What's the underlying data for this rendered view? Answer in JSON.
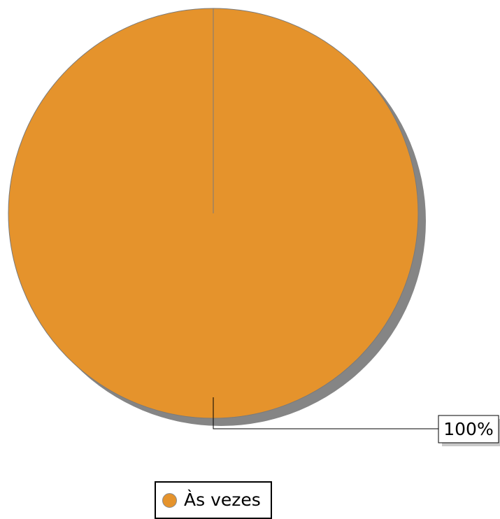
{
  "chart_data": {
    "type": "pie",
    "categories": [
      "Às vezes"
    ],
    "values": [
      100
    ],
    "data_labels": [
      "100%"
    ],
    "colors": [
      "#E5932C"
    ],
    "shadow_color": "#858585",
    "legend_position": "bottom"
  }
}
